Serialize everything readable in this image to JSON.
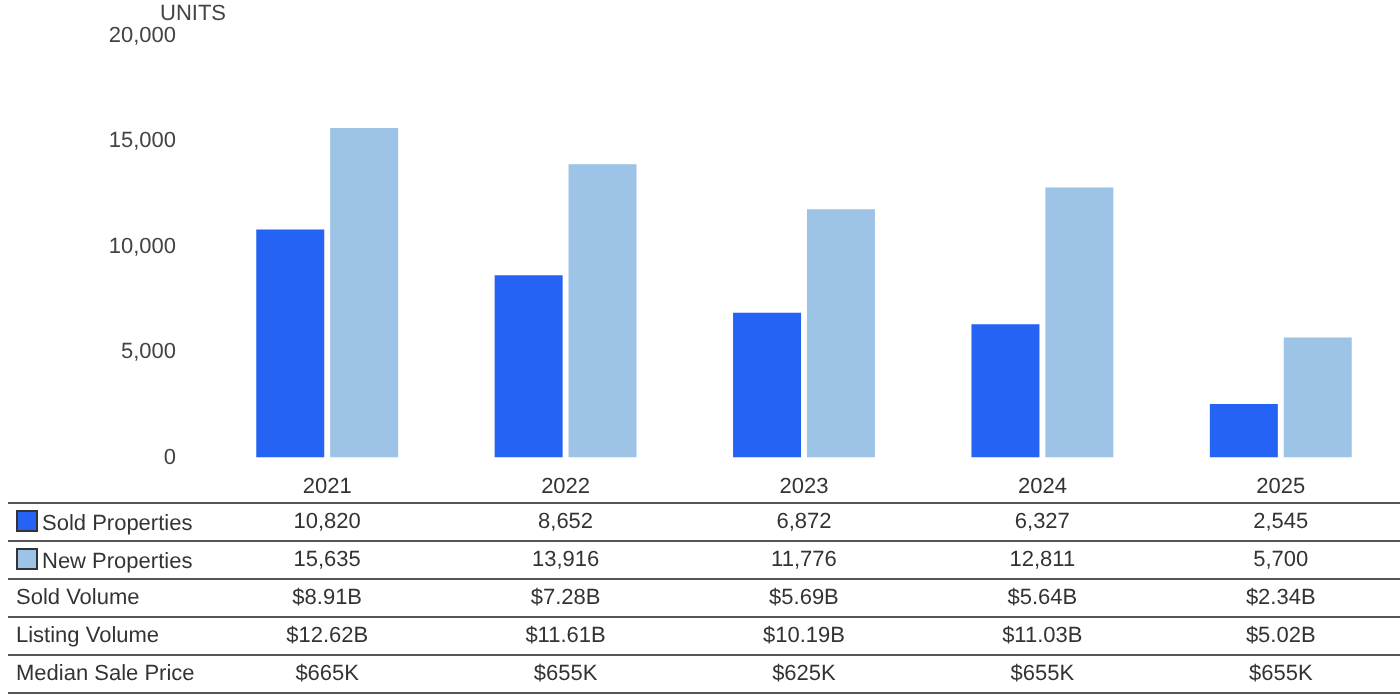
{
  "chart_data": {
    "type": "bar",
    "ylabel": "UNITS",
    "categories": [
      "2021",
      "2022",
      "2023",
      "2024",
      "2025"
    ],
    "series": [
      {
        "name": "Sold Properties",
        "color": "#2563f5",
        "values": [
          10820,
          8652,
          6872,
          6327,
          2545
        ],
        "value_labels": [
          "10,820",
          "8,652",
          "6,872",
          "6,327",
          "2,545"
        ]
      },
      {
        "name": "New Properties",
        "color": "#9dc3e6",
        "values": [
          15635,
          13916,
          11776,
          12811,
          5700
        ],
        "value_labels": [
          "15,635",
          "13,916",
          "11,776",
          "12,811",
          "5,700"
        ]
      }
    ],
    "ylim": [
      0,
      20000
    ],
    "yticks": [
      0,
      {
        "value": 5000,
        "label": "5,000"
      },
      {
        "value": 10000,
        "label": "10,000"
      },
      {
        "value": 15000,
        "label": "15,000"
      },
      {
        "value": 20000,
        "label": "20,000"
      }
    ],
    "grid": false,
    "legend": "bottom",
    "annotations": [
      "Sold Volume",
      "$8.91B",
      "$7.28B",
      "$5.69B",
      "$5.64B",
      "$2.34B",
      "Listing Volume",
      "$12.62B",
      "$11.61B",
      "$10.19B",
      "$11.03B",
      "$5.02B",
      "Median Sale Price",
      "$665K",
      "$655K",
      "$625K",
      "$655K",
      "$655K"
    ]
  }
}
